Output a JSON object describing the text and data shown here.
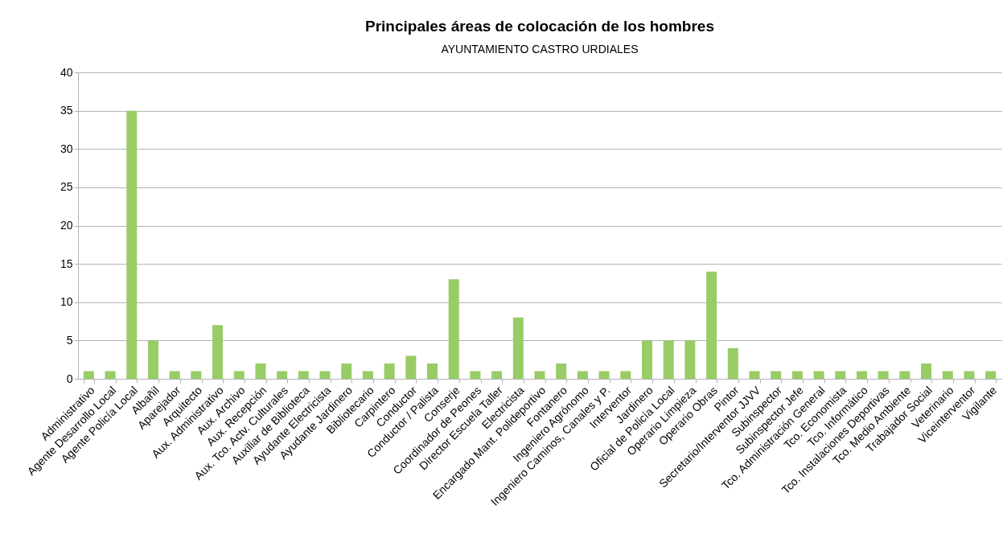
{
  "chart_data": {
    "type": "bar",
    "title": "Principales áreas de colocación de los hombres",
    "subtitle": "AYUNTAMIENTO CASTRO URDIALES",
    "categories": [
      "Administrativo",
      "Agente Desarrollo Local",
      "Agente Policía Local",
      "Albañil",
      "Aparejador",
      "Arquitecto",
      "Aux. Administrativo",
      "Aux. Archivo",
      "Aux. Recepción",
      "Aux. Tco. Actv. Culturales",
      "Auxiliar de Biblioteca",
      "Ayudante Electricista",
      "Ayudante Jardinero",
      "Bibliotecario",
      "Carpintero",
      "Conductor",
      "Conductor / Palista",
      "Conserje",
      "Coordinador de Peones",
      "Director Escuela Taller",
      "Electricista",
      "Encargado Mant. Polideportivo",
      "Fontanero",
      "Ingeniero Agrónomo",
      "Ingeniero Caminos, Canales y P.",
      "Interventor",
      "Jardinero",
      "Oficial de Policía Local",
      "Operario Limpieza",
      "Operario Obras",
      "Pintor",
      "Secretario/Interventor JJVV",
      "Subinspector",
      "Subinspector Jefe",
      "Tco. Administración General",
      "Tco. Economista",
      "Tco. Informático",
      "Tco. Instalaciones Deportivas",
      "Tco. Medio Ambiente",
      "Trabajador Social",
      "Veterinario",
      "Viceinterventor",
      "Vigilante"
    ],
    "values": [
      1,
      1,
      35,
      5,
      1,
      1,
      7,
      1,
      2,
      1,
      1,
      1,
      2,
      1,
      2,
      3,
      2,
      13,
      1,
      1,
      8,
      1,
      2,
      1,
      1,
      1,
      5,
      5,
      5,
      14,
      4,
      1,
      1,
      1,
      1,
      1,
      1,
      1,
      1,
      2,
      1,
      1,
      1
    ],
    "color": "#99cc66",
    "ylim": [
      0,
      40
    ],
    "yticks": [
      0,
      5,
      10,
      15,
      20,
      25,
      30,
      35,
      40
    ],
    "grid": "y"
  }
}
